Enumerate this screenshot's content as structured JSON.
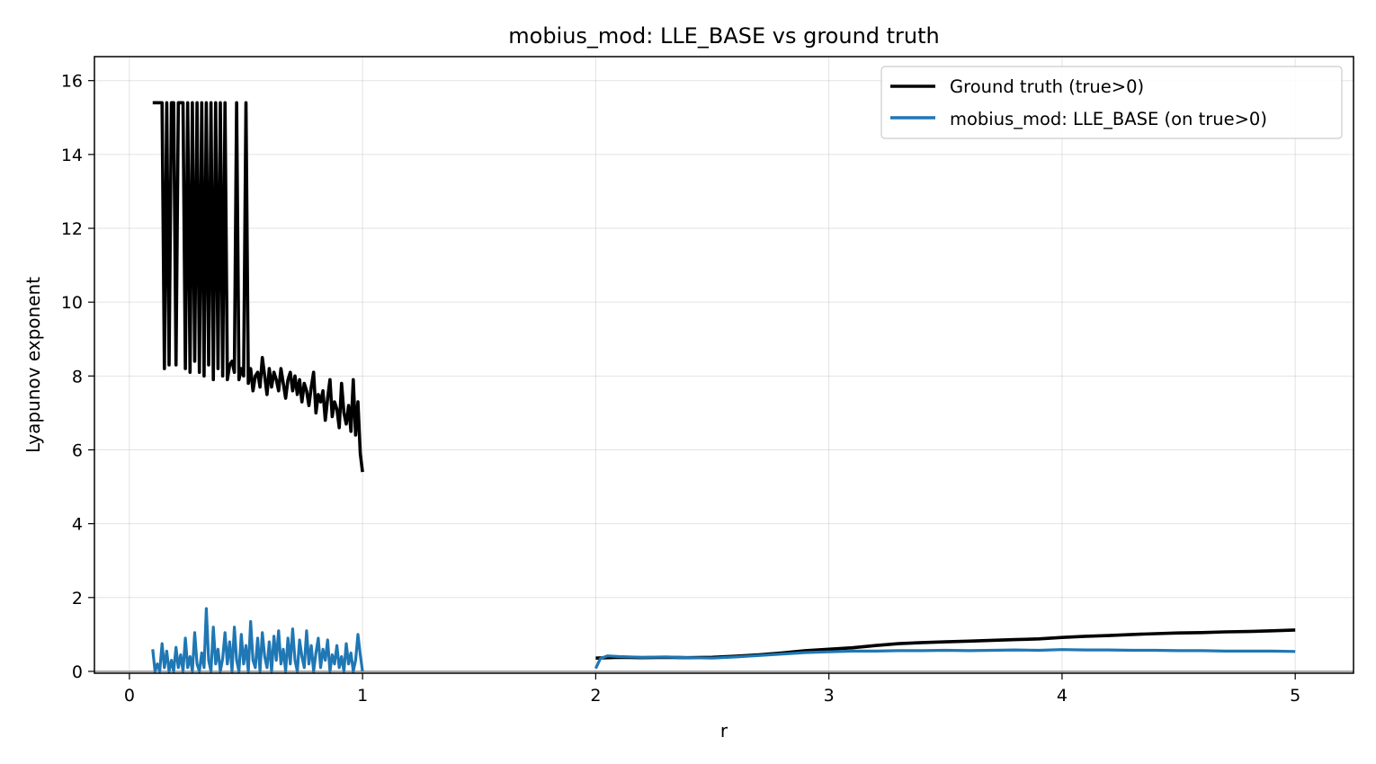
{
  "chart_data": {
    "type": "line",
    "title": "mobius_mod: LLE_BASE vs ground truth",
    "xlabel": "r",
    "ylabel": "Lyapunov exponent",
    "xlim": [
      -0.15,
      5.25
    ],
    "ylim": [
      -0.05,
      16.65
    ],
    "xticks": [
      0,
      1,
      2,
      3,
      4,
      5
    ],
    "yticks": [
      0,
      2,
      4,
      6,
      8,
      10,
      12,
      14,
      16
    ],
    "grid": true,
    "legend_position": "top-right",
    "colors": {
      "ground_truth": "#000000",
      "lle_base": "#1f77b4"
    },
    "series": [
      {
        "name": "Ground truth (true>0)",
        "color": "#000000",
        "segments": [
          {
            "x": [
              0.1,
              0.12,
              0.13,
              0.14,
              0.15,
              0.16,
              0.17,
              0.18,
              0.19,
              0.2,
              0.21,
              0.22,
              0.23,
              0.24,
              0.25,
              0.26,
              0.27,
              0.28,
              0.29,
              0.3,
              0.31,
              0.32,
              0.33,
              0.34,
              0.35,
              0.36,
              0.37,
              0.38,
              0.39,
              0.4,
              0.41,
              0.42,
              0.43,
              0.44,
              0.45,
              0.46,
              0.47,
              0.48,
              0.49,
              0.5,
              0.51,
              0.52,
              0.53,
              0.54,
              0.55,
              0.56,
              0.57,
              0.58,
              0.59,
              0.6,
              0.61,
              0.62,
              0.63,
              0.64,
              0.65,
              0.66,
              0.67,
              0.68,
              0.69,
              0.7,
              0.71,
              0.72,
              0.73,
              0.74,
              0.75,
              0.76,
              0.77,
              0.78,
              0.79,
              0.8,
              0.81,
              0.82,
              0.83,
              0.84,
              0.85,
              0.86,
              0.87,
              0.88,
              0.89,
              0.9,
              0.91,
              0.92,
              0.93,
              0.94,
              0.95,
              0.96,
              0.97,
              0.98,
              0.99,
              1.0
            ],
            "y": [
              15.4,
              15.4,
              15.4,
              15.4,
              8.2,
              15.4,
              8.3,
              15.4,
              15.4,
              8.3,
              15.4,
              15.4,
              15.4,
              8.2,
              15.4,
              8.1,
              15.4,
              8.4,
              15.4,
              8.1,
              15.4,
              8.0,
              15.4,
              8.3,
              15.4,
              7.9,
              15.4,
              8.2,
              15.4,
              8.0,
              15.4,
              7.9,
              8.3,
              8.4,
              8.1,
              15.4,
              7.9,
              8.2,
              8.0,
              15.4,
              7.8,
              8.2,
              7.6,
              8.0,
              8.1,
              7.7,
              8.5,
              8.0,
              7.5,
              8.2,
              7.7,
              8.1,
              7.9,
              7.6,
              8.2,
              7.8,
              7.4,
              7.9,
              8.1,
              7.6,
              8.0,
              7.5,
              7.9,
              7.3,
              7.8,
              7.6,
              7.2,
              7.7,
              8.1,
              7.0,
              7.5,
              7.3,
              7.6,
              6.8,
              7.4,
              7.9,
              6.9,
              7.3,
              7.1,
              6.6,
              7.8,
              7.0,
              6.7,
              7.2,
              6.5,
              7.9,
              6.4,
              7.3,
              5.9,
              5.4
            ]
          },
          {
            "x": [
              2.0,
              2.1,
              2.2,
              2.3,
              2.4,
              2.5,
              2.6,
              2.7,
              2.8,
              2.9,
              3.0,
              3.1,
              3.2,
              3.3,
              3.4,
              3.5,
              3.6,
              3.7,
              3.8,
              3.9,
              4.0,
              4.1,
              4.2,
              4.3,
              4.4,
              4.5,
              4.6,
              4.7,
              4.8,
              4.9,
              5.0
            ],
            "y": [
              0.36,
              0.38,
              0.37,
              0.38,
              0.37,
              0.38,
              0.41,
              0.45,
              0.5,
              0.56,
              0.6,
              0.64,
              0.7,
              0.75,
              0.78,
              0.8,
              0.82,
              0.84,
              0.86,
              0.88,
              0.92,
              0.95,
              0.97,
              1.0,
              1.02,
              1.04,
              1.05,
              1.07,
              1.08,
              1.1,
              1.12
            ]
          }
        ]
      },
      {
        "name": "mobius_mod: LLE_BASE (on true>0)",
        "color": "#1f77b4",
        "segments": [
          {
            "x": [
              0.1,
              0.11,
              0.12,
              0.13,
              0.14,
              0.15,
              0.16,
              0.17,
              0.18,
              0.19,
              0.2,
              0.21,
              0.22,
              0.23,
              0.24,
              0.25,
              0.26,
              0.27,
              0.28,
              0.29,
              0.3,
              0.31,
              0.32,
              0.33,
              0.34,
              0.35,
              0.36,
              0.37,
              0.38,
              0.39,
              0.4,
              0.41,
              0.42,
              0.43,
              0.44,
              0.45,
              0.46,
              0.47,
              0.48,
              0.49,
              0.5,
              0.51,
              0.52,
              0.53,
              0.54,
              0.55,
              0.56,
              0.57,
              0.58,
              0.59,
              0.6,
              0.61,
              0.62,
              0.63,
              0.64,
              0.65,
              0.66,
              0.67,
              0.68,
              0.69,
              0.7,
              0.71,
              0.72,
              0.73,
              0.74,
              0.75,
              0.76,
              0.77,
              0.78,
              0.79,
              0.8,
              0.81,
              0.82,
              0.83,
              0.84,
              0.85,
              0.86,
              0.87,
              0.88,
              0.89,
              0.9,
              0.91,
              0.92,
              0.93,
              0.94,
              0.95,
              0.96,
              0.97,
              0.98,
              0.99,
              1.0
            ],
            "y": [
              0.6,
              0.0,
              0.2,
              0.0,
              0.75,
              0.1,
              0.55,
              0.0,
              0.3,
              0.0,
              0.65,
              0.1,
              0.45,
              0.0,
              0.9,
              0.1,
              0.4,
              0.0,
              1.05,
              0.2,
              0.0,
              0.5,
              0.1,
              1.7,
              0.3,
              0.0,
              1.2,
              0.2,
              0.6,
              0.0,
              0.35,
              1.05,
              0.2,
              0.8,
              0.0,
              1.2,
              0.3,
              0.0,
              1.0,
              0.2,
              0.7,
              0.0,
              1.35,
              0.3,
              0.1,
              0.9,
              0.0,
              1.05,
              0.4,
              0.1,
              0.8,
              0.0,
              0.95,
              0.3,
              1.1,
              0.2,
              0.6,
              0.0,
              0.9,
              0.2,
              1.15,
              0.3,
              0.0,
              0.85,
              0.4,
              0.1,
              1.1,
              0.2,
              0.7,
              0.0,
              0.5,
              0.9,
              0.1,
              0.6,
              0.3,
              0.85,
              0.0,
              0.45,
              0.2,
              0.7,
              0.1,
              0.4,
              0.0,
              0.75,
              0.2,
              0.5,
              0.0,
              0.3,
              1.0,
              0.45,
              0.0
            ]
          },
          {
            "x": [
              2.0,
              2.02,
              2.05,
              2.1,
              2.2,
              2.3,
              2.4,
              2.5,
              2.6,
              2.7,
              2.8,
              2.9,
              3.0,
              3.1,
              3.2,
              3.3,
              3.4,
              3.5,
              3.6,
              3.7,
              3.8,
              3.9,
              4.0,
              4.1,
              4.2,
              4.3,
              4.4,
              4.5,
              4.6,
              4.7,
              4.8,
              4.9,
              5.0
            ],
            "y": [
              0.08,
              0.35,
              0.42,
              0.4,
              0.38,
              0.39,
              0.37,
              0.36,
              0.39,
              0.43,
              0.47,
              0.51,
              0.53,
              0.55,
              0.55,
              0.56,
              0.56,
              0.57,
              0.56,
              0.57,
              0.58,
              0.57,
              0.59,
              0.58,
              0.58,
              0.57,
              0.57,
              0.56,
              0.56,
              0.55,
              0.55,
              0.55,
              0.54
            ]
          }
        ]
      }
    ]
  }
}
